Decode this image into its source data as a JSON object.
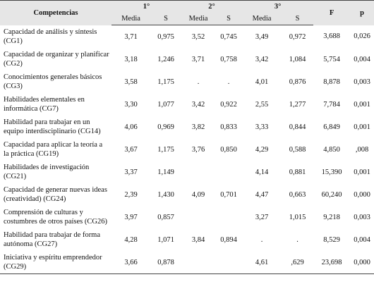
{
  "table": {
    "groups": [
      "Competencias",
      "1°",
      "2°",
      "3°",
      "F",
      "p"
    ],
    "subheaders": [
      "Media",
      "S",
      "Media",
      "S",
      "Media",
      "S"
    ],
    "rows": [
      [
        "Capacidad de análisis y síntesis (CG1)",
        "3,71",
        "0,975",
        "3,52",
        "0,745",
        "3,49",
        "0,972",
        "3,688",
        "0,026"
      ],
      [
        "Capacidad de organizar y planificar (CG2)",
        "3,18",
        "1,246",
        "3,71",
        "0,758",
        "3,42",
        "1,084",
        "5,754",
        "0,004"
      ],
      [
        "Conocimientos generales básicos (CG3)",
        "3,58",
        "1,175",
        ".",
        ".",
        "4,01",
        "0,876",
        "8,878",
        "0,003"
      ],
      [
        "Habilidades elementales en informática (CG7)",
        "3,30",
        "1,077",
        "3,42",
        "0,922",
        "2,55",
        "1,277",
        "7,784",
        "0,001"
      ],
      [
        "Habilidad para trabajar en un equipo interdisciplinario (CG14)",
        "4,06",
        "0,969",
        "3,82",
        "0,833",
        "3,33",
        "0,844",
        "6,849",
        "0,001"
      ],
      [
        "Capacidad para aplicar la teoría a la práctica (CG19)",
        "3,67",
        "1,175",
        "3,76",
        "0,850",
        "4,29",
        "0,588",
        "4,850",
        ",008"
      ],
      [
        "Habilidades de investigación (CG21)",
        "3,37",
        "1,149",
        null,
        null,
        "4,14",
        "0,881",
        "15,390",
        "0,001"
      ],
      [
        "Capacidad de generar nuevas ideas (creatividad) (CG24)",
        "2,39",
        "1,430",
        "4,09",
        "0,701",
        "4,47",
        "0,663",
        "60,240",
        "0,000"
      ],
      [
        "Comprensión de culturas y costumbres de otros países (CG26)",
        "3,97",
        "0,857",
        null,
        null,
        "3,27",
        "1,015",
        "9,218",
        "0,003"
      ],
      [
        "Habilidad para trabajar de forma autónoma (CG27)",
        "4,28",
        "1,071",
        "3,84",
        "0,894",
        ".",
        ".",
        "8,529",
        "0,004"
      ],
      [
        "Iniciativa y espíritu emprendedor (CG29)",
        "3,66",
        "0,878",
        null,
        null,
        "4,61",
        ",629",
        "23,698",
        "0,000"
      ]
    ]
  }
}
